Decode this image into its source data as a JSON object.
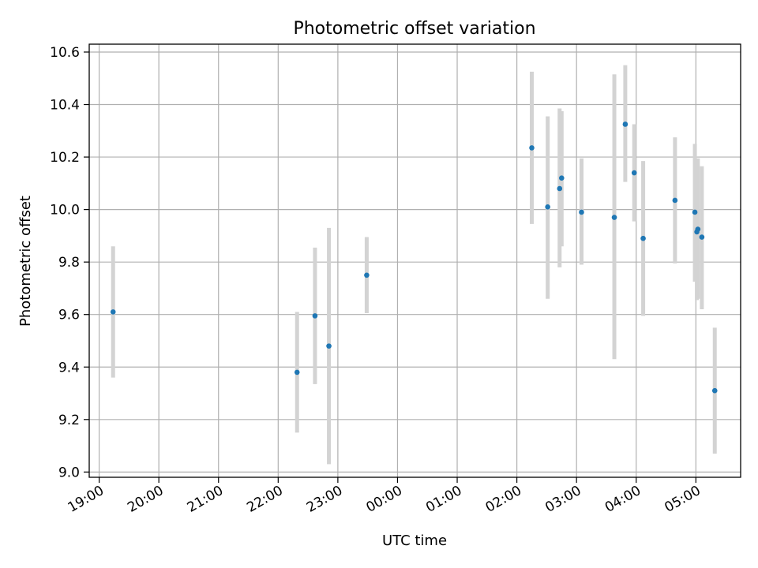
{
  "chart_data": {
    "type": "scatter",
    "title": "Photometric offset variation",
    "xlabel": "UTC time",
    "ylabel": "Photometric offset",
    "x_ticks": [
      "19:00",
      "20:00",
      "21:00",
      "22:00",
      "23:00",
      "00:00",
      "01:00",
      "02:00",
      "03:00",
      "04:00",
      "05:00"
    ],
    "y_ticks": [
      "9.0",
      "9.2",
      "9.4",
      "9.6",
      "9.8",
      "10.0",
      "10.2",
      "10.4",
      "10.6"
    ],
    "xlim": [
      "18:50",
      "05:45"
    ],
    "ylim": [
      8.98,
      10.63
    ],
    "grid": true,
    "point_color": "#1f77b4",
    "errorbar_color": "#d3d3d3",
    "points": [
      {
        "x": "19:14",
        "y": 9.61,
        "ylow": 9.36,
        "yhigh": 9.86
      },
      {
        "x": "22:19",
        "y": 9.38,
        "ylow": 9.15,
        "yhigh": 9.61
      },
      {
        "x": "22:37",
        "y": 9.595,
        "ylow": 9.335,
        "yhigh": 9.855
      },
      {
        "x": "22:51",
        "y": 9.48,
        "ylow": 9.03,
        "yhigh": 9.93
      },
      {
        "x": "23:29",
        "y": 9.75,
        "ylow": 9.605,
        "yhigh": 9.895
      },
      {
        "x": "02:15",
        "y": 10.235,
        "ylow": 9.945,
        "yhigh": 10.525
      },
      {
        "x": "02:31",
        "y": 10.01,
        "ylow": 9.66,
        "yhigh": 10.355
      },
      {
        "x": "02:43",
        "y": 10.08,
        "ylow": 9.78,
        "yhigh": 10.385
      },
      {
        "x": "02:45",
        "y": 10.12,
        "ylow": 9.86,
        "yhigh": 10.375
      },
      {
        "x": "03:05",
        "y": 9.99,
        "ylow": 9.79,
        "yhigh": 10.195
      },
      {
        "x": "03:38",
        "y": 9.97,
        "ylow": 9.43,
        "yhigh": 10.515
      },
      {
        "x": "03:49",
        "y": 10.325,
        "ylow": 10.105,
        "yhigh": 10.55
      },
      {
        "x": "03:58",
        "y": 10.14,
        "ylow": 9.955,
        "yhigh": 10.325
      },
      {
        "x": "04:07",
        "y": 9.89,
        "ylow": 9.595,
        "yhigh": 10.185
      },
      {
        "x": "04:39",
        "y": 10.035,
        "ylow": 9.795,
        "yhigh": 10.275
      },
      {
        "x": "04:59",
        "y": 9.99,
        "ylow": 9.725,
        "yhigh": 10.25
      },
      {
        "x": "05:01",
        "y": 9.915,
        "ylow": 9.655,
        "yhigh": 10.175
      },
      {
        "x": "05:02",
        "y": 9.925,
        "ylow": 9.66,
        "yhigh": 10.195
      },
      {
        "x": "05:06",
        "y": 9.895,
        "ylow": 9.62,
        "yhigh": 10.165
      },
      {
        "x": "05:19",
        "y": 9.31,
        "ylow": 9.07,
        "yhigh": 9.55
      }
    ]
  }
}
